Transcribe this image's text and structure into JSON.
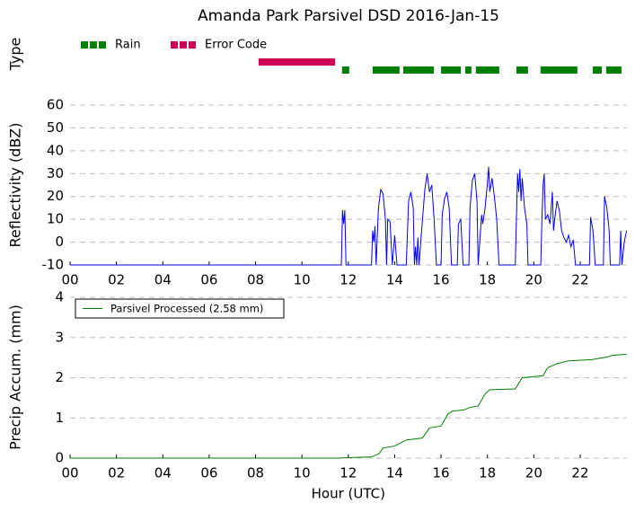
{
  "chart_data": [
    {
      "type": "timeline",
      "title": "Amanda Park Parsivel DSD 2016-Jan-15",
      "ylabel": "Type",
      "xlim": [
        0,
        24
      ],
      "series": [
        {
          "name": "Rain",
          "color": "#008000",
          "segments": [
            [
              11.73,
              12.04
            ],
            [
              13.05,
              14.21
            ],
            [
              14.37,
              15.69
            ],
            [
              16.0,
              16.85
            ],
            [
              17.04,
              17.31
            ],
            [
              17.5,
              18.51
            ],
            [
              19.25,
              19.75
            ],
            [
              20.29,
              21.88
            ],
            [
              22.54,
              22.93
            ],
            [
              23.12,
              23.78
            ]
          ]
        },
        {
          "name": "Error Code",
          "color": "#cc0055",
          "segments": [
            [
              8.13,
              11.43
            ]
          ]
        }
      ]
    },
    {
      "type": "line",
      "ylabel": "Reflectivity (dBZ)",
      "xlim": [
        0,
        24
      ],
      "ylim": [
        -10,
        60
      ],
      "xticks": [
        {
          "value": 0,
          "label": "00"
        },
        {
          "value": 2,
          "label": "02"
        },
        {
          "value": 4,
          "label": "04"
        },
        {
          "value": 6,
          "label": "06"
        },
        {
          "value": 8,
          "label": "08"
        },
        {
          "value": 10,
          "label": "10"
        },
        {
          "value": 12,
          "label": "12"
        },
        {
          "value": 14,
          "label": "14"
        },
        {
          "value": 16,
          "label": "16"
        },
        {
          "value": 18,
          "label": "18"
        },
        {
          "value": 20,
          "label": "20"
        },
        {
          "value": 22,
          "label": "22"
        }
      ],
      "yticks": [
        -10,
        0,
        10,
        20,
        30,
        40,
        50,
        60
      ],
      "grid": true,
      "x": [
        0,
        11.7,
        11.75,
        11.8,
        11.85,
        11.9,
        13.0,
        13.05,
        13.1,
        13.15,
        13.2,
        13.3,
        13.4,
        13.5,
        13.6,
        13.65,
        13.7,
        13.8,
        13.9,
        14.0,
        14.1,
        14.5,
        14.6,
        14.7,
        14.8,
        14.85,
        14.9,
        14.95,
        15.0,
        15.05,
        15.2,
        15.3,
        15.4,
        15.5,
        15.6,
        15.7,
        15.8,
        16.0,
        16.05,
        16.15,
        16.25,
        16.35,
        16.45,
        16.7,
        16.75,
        16.85,
        16.95,
        17.2,
        17.25,
        17.35,
        17.45,
        17.55,
        17.6,
        17.75,
        17.8,
        17.9,
        18.0,
        18.05,
        18.1,
        18.2,
        18.3,
        18.4,
        18.5,
        19.2,
        19.25,
        19.3,
        19.35,
        19.4,
        19.45,
        19.5,
        19.6,
        19.7,
        19.75,
        20.3,
        20.35,
        20.4,
        20.45,
        20.5,
        20.6,
        20.7,
        20.8,
        20.85,
        20.9,
        21.0,
        21.1,
        21.2,
        21.3,
        21.4,
        21.5,
        21.6,
        21.7,
        21.8,
        22.4,
        22.45,
        22.55,
        22.65,
        23.0,
        23.05,
        23.15,
        23.25,
        23.3,
        23.7,
        23.75,
        23.8,
        23.9,
        24.0
      ],
      "series": [
        {
          "color": "#0000ff",
          "values": [
            -10,
            -10,
            14,
            8,
            14,
            -10,
            -10,
            5,
            0,
            7,
            -10,
            15,
            23,
            21,
            10,
            -10,
            10,
            9,
            -10,
            3,
            -10,
            -10,
            18,
            22,
            15,
            -10,
            -2,
            -10,
            2,
            -10,
            10,
            23,
            30,
            22,
            25,
            10,
            -10,
            -10,
            12,
            19,
            22,
            15,
            -10,
            -10,
            8,
            10,
            -10,
            -10,
            15,
            27,
            30,
            18,
            -10,
            12,
            8,
            15,
            26,
            33,
            22,
            28,
            20,
            10,
            -10,
            -10,
            10,
            30,
            22,
            32,
            18,
            28,
            15,
            8,
            -10,
            -10,
            10,
            25,
            30,
            10,
            12,
            8,
            22,
            5,
            10,
            18,
            14,
            5,
            2,
            0,
            3,
            -2,
            1,
            -10,
            -10,
            11,
            5,
            -10,
            -10,
            20,
            15,
            5,
            -10,
            -10,
            5,
            -10,
            0,
            5
          ]
        }
      ]
    },
    {
      "type": "line",
      "ylabel": "Precip Accum. (mm)",
      "xlabel": "Hour (UTC)",
      "xlim": [
        0,
        24
      ],
      "ylim": [
        0,
        4
      ],
      "xticks": [
        {
          "value": 0,
          "label": "00"
        },
        {
          "value": 2,
          "label": "02"
        },
        {
          "value": 4,
          "label": "04"
        },
        {
          "value": 6,
          "label": "06"
        },
        {
          "value": 8,
          "label": "08"
        },
        {
          "value": 10,
          "label": "10"
        },
        {
          "value": 12,
          "label": "12"
        },
        {
          "value": 14,
          "label": "14"
        },
        {
          "value": 16,
          "label": "16"
        },
        {
          "value": 18,
          "label": "18"
        },
        {
          "value": 20,
          "label": "20"
        },
        {
          "value": 22,
          "label": "22"
        }
      ],
      "yticks": [
        0,
        1,
        2,
        3,
        4
      ],
      "grid": true,
      "legend": "upper left",
      "x": [
        0,
        11.5,
        12,
        13,
        13.3,
        13.5,
        14,
        14.5,
        15.2,
        15.5,
        16.0,
        16.3,
        16.5,
        17,
        17.2,
        17.6,
        17.9,
        18.1,
        19.2,
        19.5,
        20.4,
        20.6,
        21,
        21.5,
        22.5,
        23.2,
        23.4,
        24
      ],
      "series": [
        {
          "name": "Parsivel Processed (2.58 mm)",
          "color": "#008000",
          "values": [
            0,
            0,
            0.01,
            0.03,
            0.1,
            0.25,
            0.3,
            0.45,
            0.5,
            0.75,
            0.8,
            1.1,
            1.17,
            1.2,
            1.25,
            1.3,
            1.6,
            1.7,
            1.72,
            2.0,
            2.05,
            2.25,
            2.35,
            2.42,
            2.45,
            2.52,
            2.56,
            2.58
          ]
        }
      ]
    }
  ]
}
